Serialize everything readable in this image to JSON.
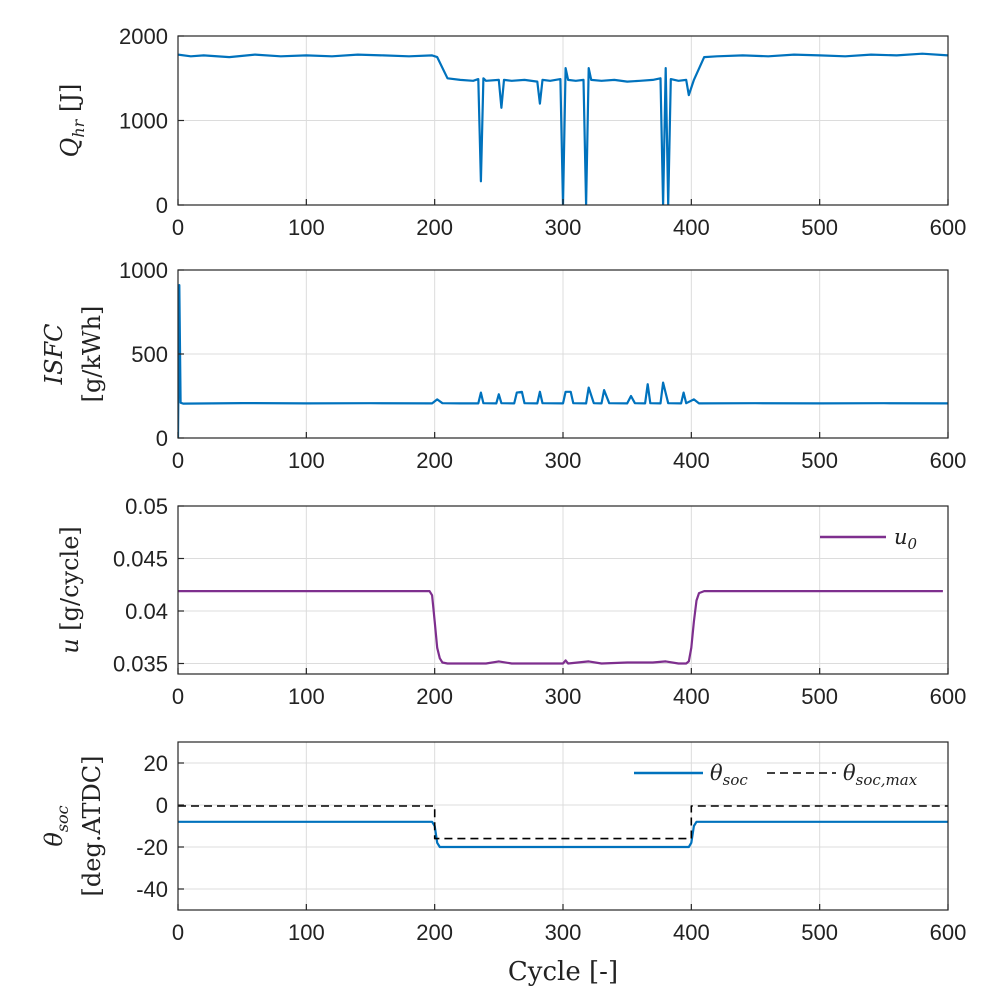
{
  "chart_data": [
    {
      "id": "qhr",
      "type": "line",
      "ylabel_main": "Q",
      "ylabel_sub": "hr",
      "ylabel_unit": " [J]",
      "xlim": [
        0,
        600
      ],
      "ylim": [
        0,
        2000
      ],
      "xticks": [
        0,
        100,
        200,
        300,
        400,
        500,
        600
      ],
      "yticks": [
        0,
        1000,
        2000
      ],
      "grid": true,
      "series": [
        {
          "color": "#0072BD",
          "style": "solid",
          "x": [
            0,
            10,
            20,
            40,
            60,
            80,
            100,
            120,
            140,
            160,
            180,
            198,
            202,
            210,
            220,
            230,
            234,
            236,
            238,
            240,
            250,
            252,
            254,
            260,
            270,
            280,
            282,
            284,
            290,
            298,
            300,
            302,
            304,
            310,
            316,
            318,
            320,
            322,
            330,
            340,
            350,
            360,
            370,
            376,
            378,
            380,
            382,
            384,
            390,
            396,
            398,
            402,
            410,
            420,
            440,
            460,
            480,
            500,
            520,
            540,
            560,
            580,
            600
          ],
          "y": [
            1780,
            1760,
            1770,
            1750,
            1780,
            1760,
            1770,
            1760,
            1780,
            1770,
            1760,
            1770,
            1750,
            1500,
            1480,
            1470,
            1490,
            280,
            1500,
            1470,
            1480,
            1150,
            1480,
            1470,
            1480,
            1460,
            1200,
            1480,
            1470,
            1490,
            0,
            1620,
            1480,
            1470,
            1480,
            0,
            1620,
            1480,
            1470,
            1480,
            1460,
            1470,
            1480,
            1500,
            0,
            1620,
            0,
            1490,
            1470,
            1480,
            1300,
            1480,
            1750,
            1760,
            1770,
            1760,
            1780,
            1770,
            1760,
            1780,
            1770,
            1790,
            1770
          ]
        }
      ]
    },
    {
      "id": "isfc",
      "type": "line",
      "ylabel_main": "ISFC",
      "ylabel_unit": "[g/kWh]",
      "xlim": [
        0,
        600
      ],
      "ylim": [
        0,
        1000
      ],
      "xticks": [
        0,
        100,
        200,
        300,
        400,
        500,
        600
      ],
      "yticks": [
        0,
        500,
        1000
      ],
      "grid": true,
      "series": [
        {
          "color": "#0072BD",
          "style": "solid",
          "x": [
            0,
            1,
            2,
            4,
            50,
            100,
            150,
            198,
            202,
            206,
            220,
            234,
            236,
            238,
            248,
            250,
            252,
            262,
            264,
            268,
            270,
            280,
            282,
            284,
            300,
            302,
            306,
            308,
            318,
            320,
            324,
            330,
            332,
            336,
            350,
            353,
            356,
            364,
            366,
            368,
            376,
            378,
            382,
            392,
            394,
            396,
            402,
            406,
            450,
            500,
            550,
            600
          ],
          "y": [
            0,
            910,
            210,
            205,
            208,
            206,
            207,
            206,
            230,
            207,
            206,
            206,
            270,
            207,
            206,
            260,
            207,
            206,
            270,
            275,
            207,
            206,
            275,
            207,
            206,
            275,
            275,
            207,
            206,
            300,
            207,
            206,
            285,
            207,
            206,
            250,
            207,
            206,
            320,
            207,
            206,
            330,
            207,
            206,
            270,
            207,
            230,
            206,
            207,
            206,
            207,
            206
          ]
        }
      ]
    },
    {
      "id": "u",
      "type": "line",
      "ylabel_main": "u",
      "ylabel_unit": " [g/cycle]",
      "xlim": [
        0,
        600
      ],
      "ylim": [
        0.034,
        0.05
      ],
      "xticks": [
        0,
        100,
        200,
        300,
        400,
        500,
        600
      ],
      "yticks": [
        0.035,
        0.04,
        0.045,
        0.05
      ],
      "ytick_labels": [
        "0.035",
        "0.04",
        "0.045",
        "0.05"
      ],
      "grid": true,
      "legend_position": "top-right",
      "series": [
        {
          "name_main": "u",
          "name_sub": "0",
          "color": "#7E2F8E",
          "style": "solid",
          "x": [
            0,
            100,
            196,
            198,
            200,
            202,
            204,
            206,
            210,
            220,
            240,
            250,
            260,
            280,
            300,
            302,
            304,
            320,
            330,
            350,
            370,
            380,
            390,
            396,
            398,
            400,
            402,
            404,
            406,
            410,
            500,
            596
          ],
          "y": [
            0.0419,
            0.0419,
            0.0419,
            0.0415,
            0.039,
            0.0365,
            0.0355,
            0.0351,
            0.035,
            0.035,
            0.035,
            0.0352,
            0.035,
            0.035,
            0.035,
            0.0353,
            0.035,
            0.0352,
            0.035,
            0.0351,
            0.0351,
            0.0352,
            0.035,
            0.035,
            0.0352,
            0.0365,
            0.039,
            0.041,
            0.0417,
            0.0419,
            0.0419,
            0.0419
          ]
        }
      ]
    },
    {
      "id": "theta",
      "type": "line",
      "ylabel_main": "θ",
      "ylabel_sub": "soc",
      "ylabel_unit": "[deg.ATDC]",
      "xlim": [
        0,
        600
      ],
      "ylim": [
        -50,
        30
      ],
      "xticks": [
        0,
        100,
        200,
        300,
        400,
        500,
        600
      ],
      "yticks": [
        -40,
        -20,
        0,
        20
      ],
      "grid": true,
      "legend_position": "top-right",
      "series": [
        {
          "name_main": "θ",
          "name_sub": "soc",
          "color": "#0072BD",
          "style": "solid",
          "x": [
            0,
            198,
            200,
            202,
            204,
            396,
            398,
            400,
            402,
            404,
            600
          ],
          "y": [
            -8,
            -8,
            -10,
            -18,
            -20,
            -20,
            -20,
            -18,
            -10,
            -8,
            -8
          ]
        },
        {
          "name_main": "θ",
          "name_sub": "soc,max",
          "color": "#000000",
          "style": "dashed",
          "x": [
            0,
            200,
            200,
            400,
            400,
            600
          ],
          "y": [
            -0.5,
            -0.5,
            -16,
            -16,
            -0.5,
            -0.5
          ]
        }
      ]
    }
  ],
  "shared_xlabel": "Cycle [-]"
}
